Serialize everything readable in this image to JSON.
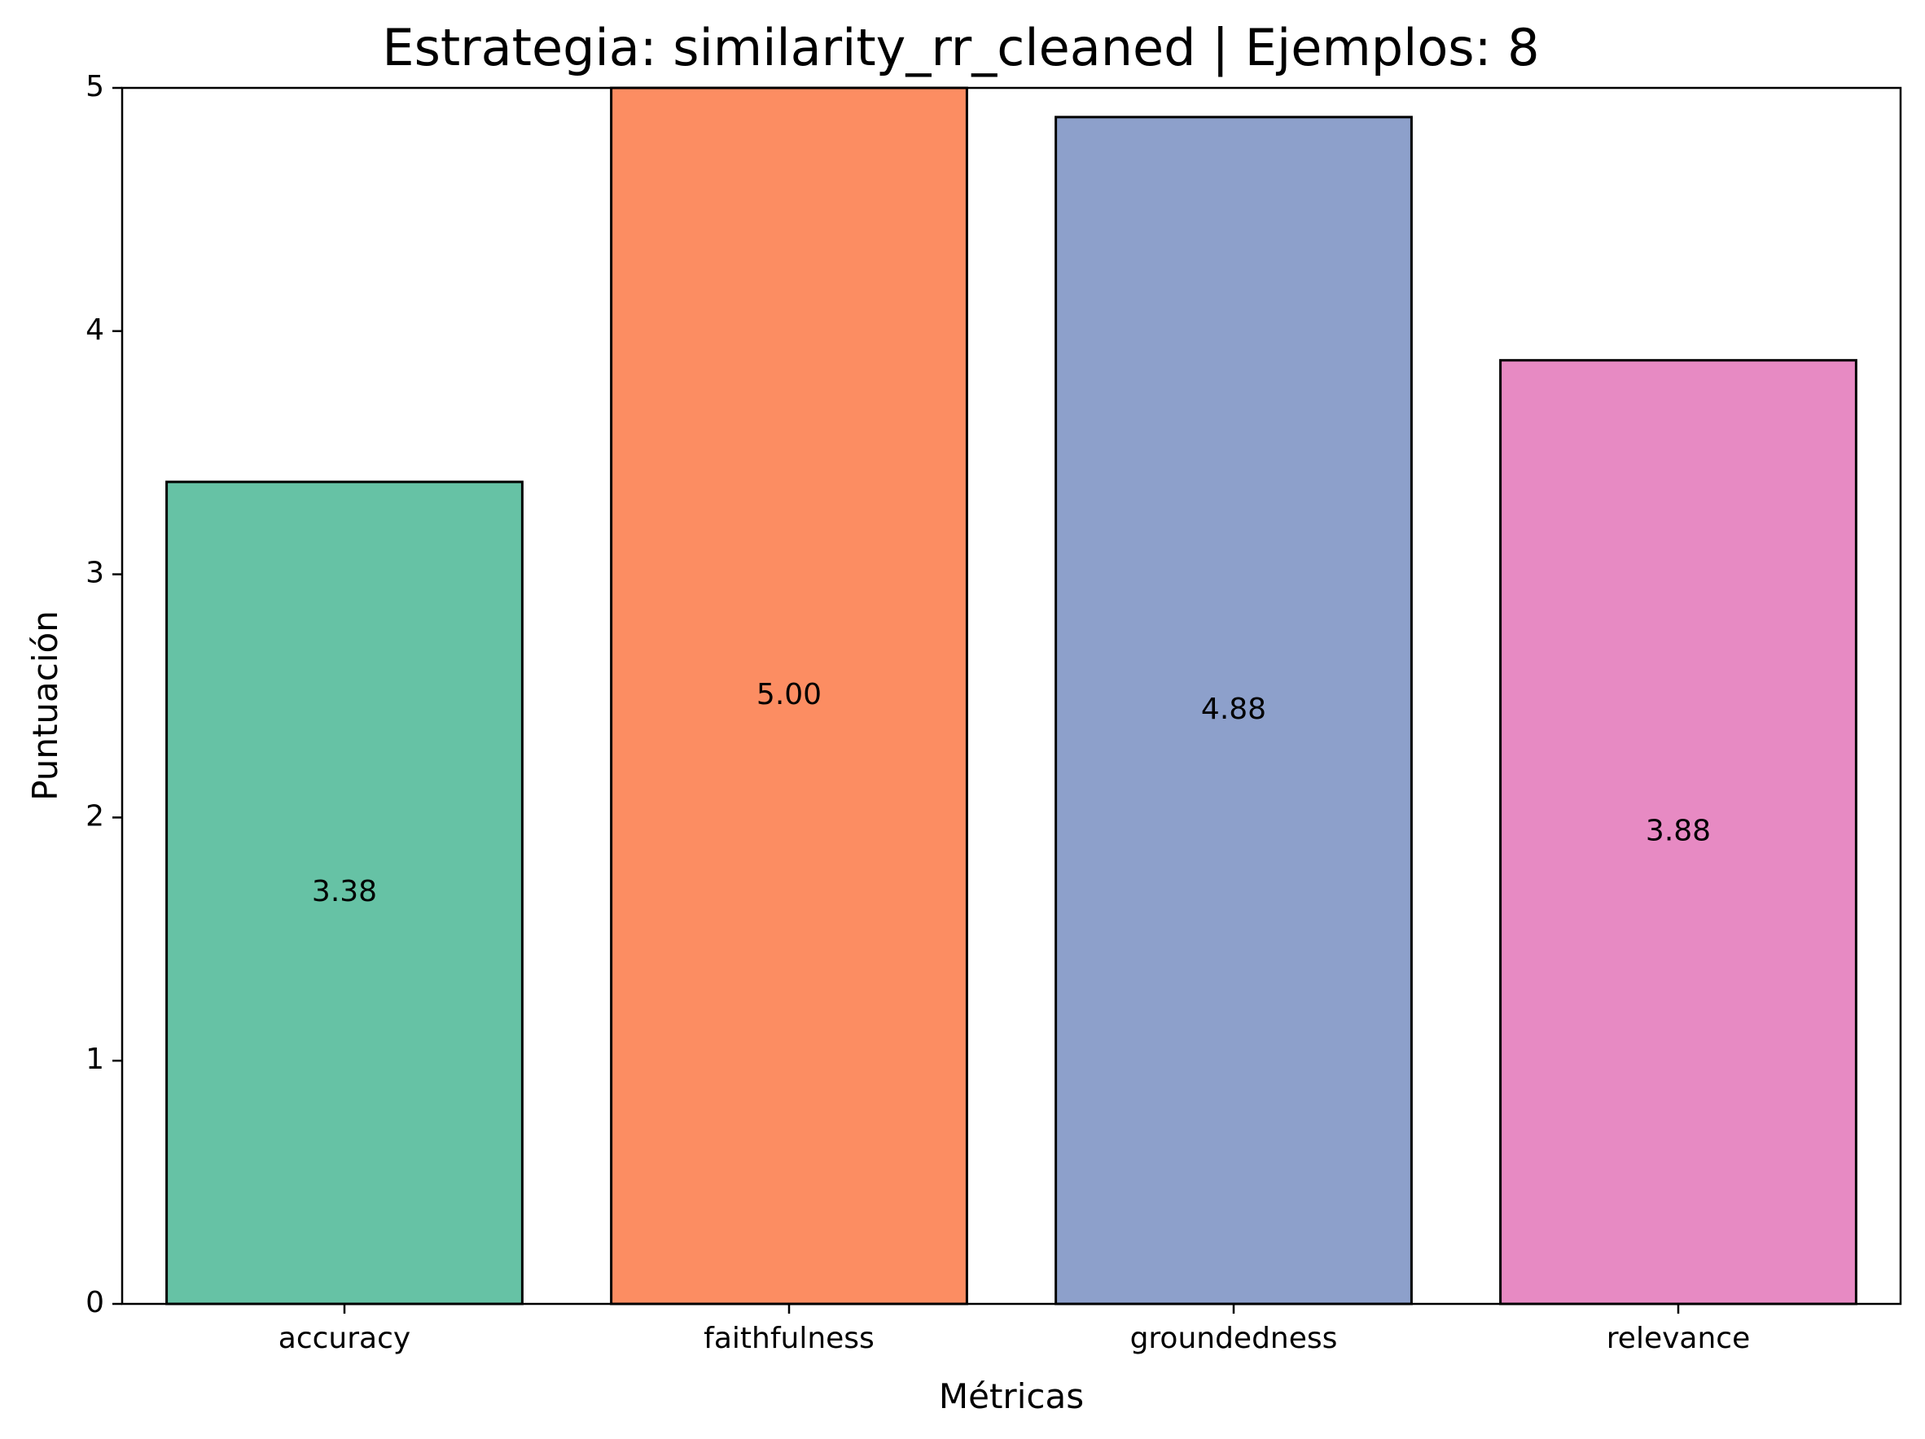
{
  "chart_data": {
    "type": "bar",
    "title": "Estrategia: similarity_rr_cleaned | Ejemplos: 8",
    "xlabel": "Métricas",
    "ylabel": "Puntuación",
    "categories": [
      "accuracy",
      "faithfulness",
      "groundedness",
      "relevance"
    ],
    "values": [
      3.38,
      5.0,
      4.88,
      3.88
    ],
    "value_labels": [
      "3.38",
      "5.00",
      "4.88",
      "3.88"
    ],
    "colors": [
      "#66c2a5",
      "#fc8d62",
      "#8da0cb",
      "#e78ac3"
    ],
    "ylim": [
      0,
      5
    ],
    "yticks": [
      0,
      1,
      2,
      3,
      4,
      5
    ],
    "grid": false,
    "legend": "none"
  }
}
